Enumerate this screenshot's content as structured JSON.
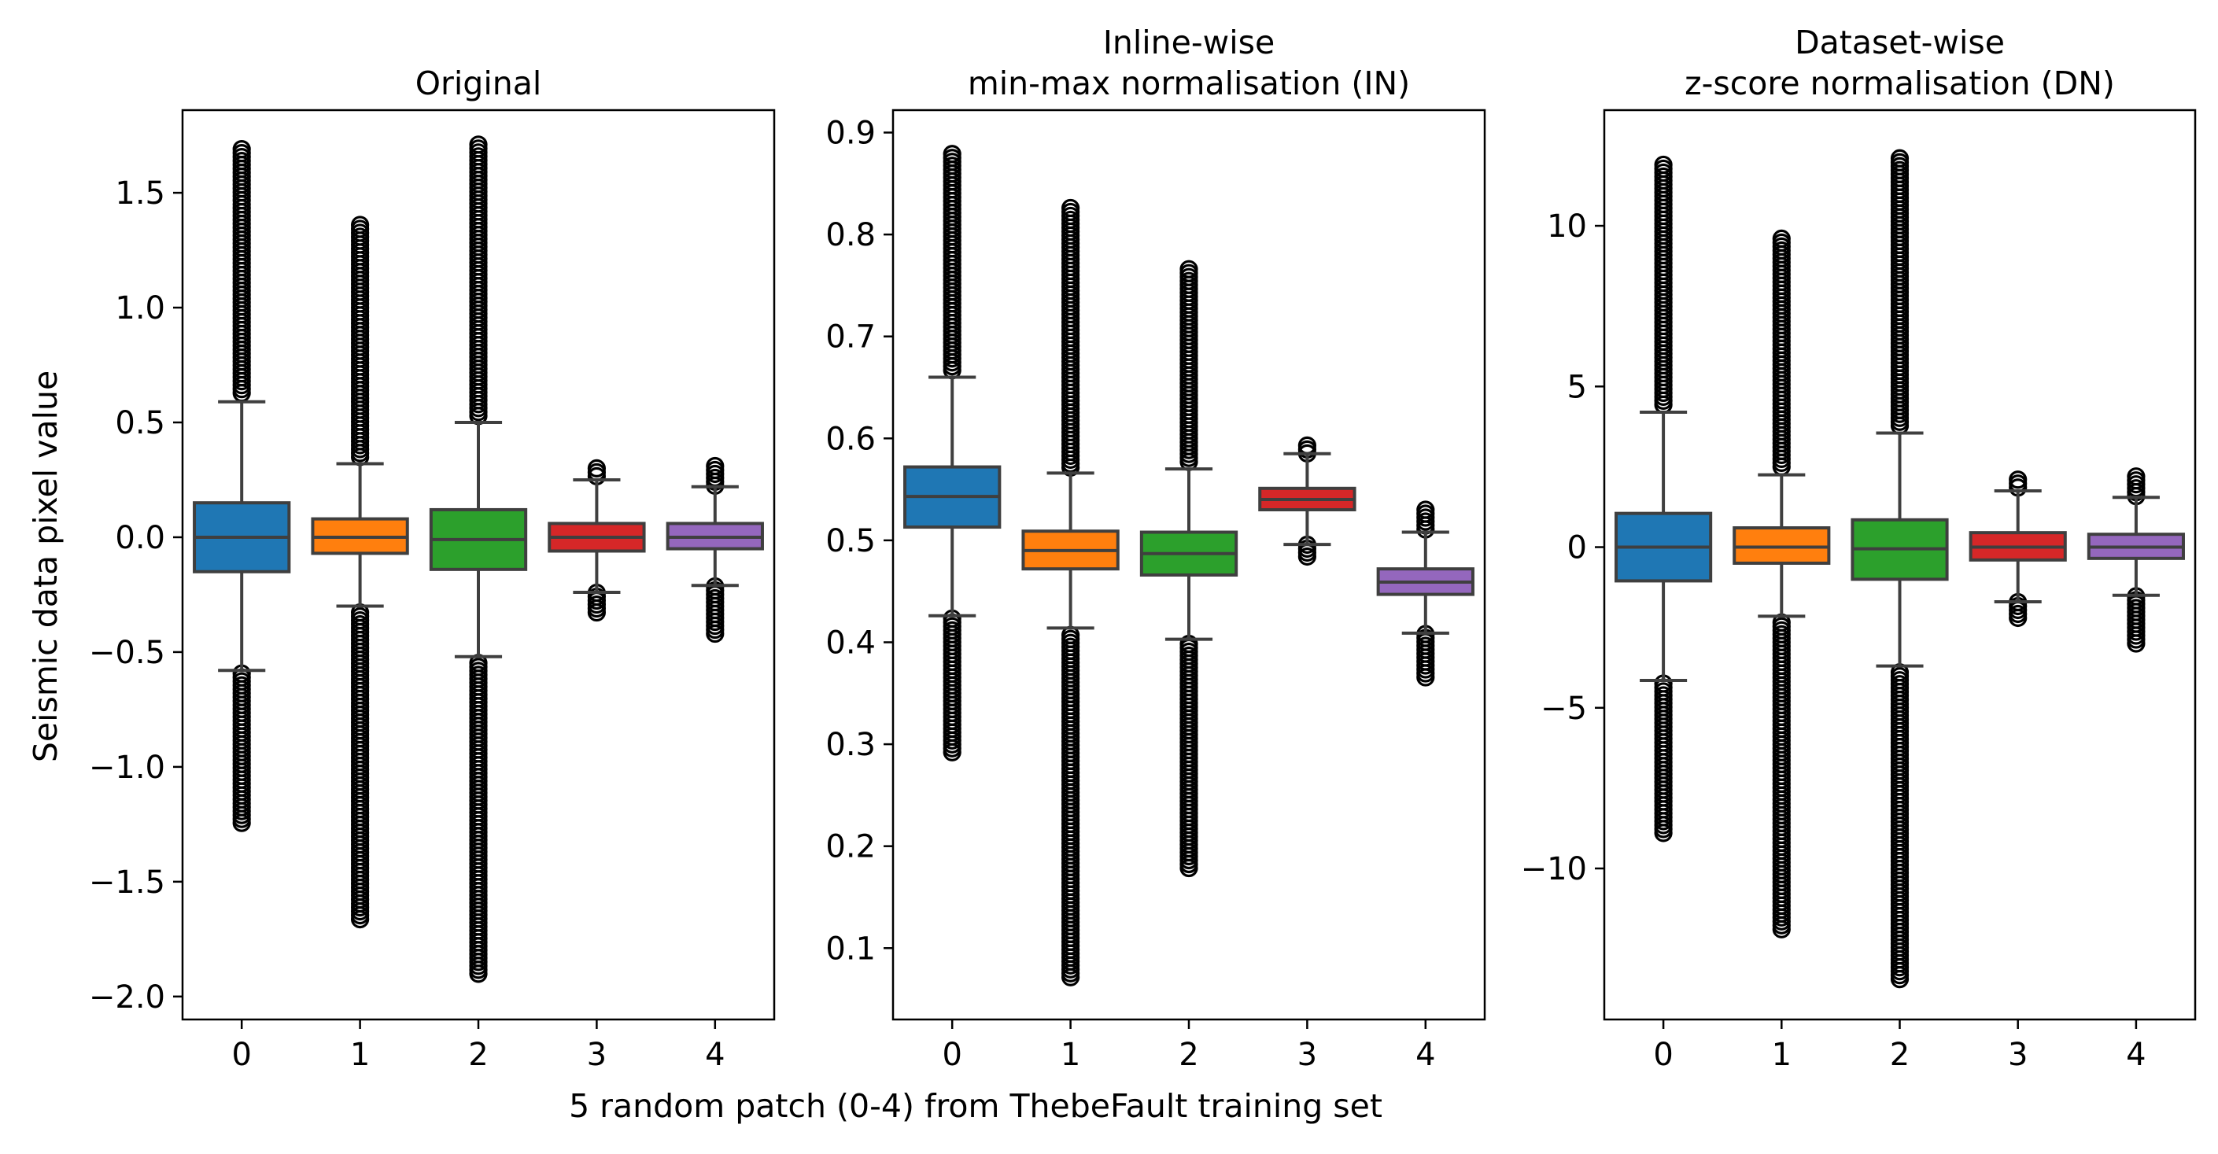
{
  "figure": {
    "xlabel": "5 random patch (0-4) from ThebeFault training set",
    "ylabel": "Seismic data pixel value",
    "colors": [
      "#1f77b4",
      "#ff7f0e",
      "#2ca02c",
      "#d62728",
      "#9467bd"
    ],
    "box_edge_color": "#3f3f3f"
  },
  "chart_data": [
    {
      "type": "box",
      "title": "Original",
      "categories": [
        "0",
        "1",
        "2",
        "3",
        "4"
      ],
      "ylim": [
        -2.1,
        1.86
      ],
      "yticks": [
        -2.0,
        -1.5,
        -1.0,
        -0.5,
        0.0,
        0.5,
        1.0,
        1.5
      ],
      "ytick_labels": [
        "−2.0",
        "−1.5",
        "−1.0",
        "−0.5",
        "0.0",
        "0.5",
        "1.0",
        "1.5"
      ],
      "boxes": [
        {
          "q1": -0.15,
          "median": 0.0,
          "q3": 0.15,
          "whisker_low": -0.58,
          "whisker_high": 0.59,
          "flier_min": -1.25,
          "flier_max": 1.69
        },
        {
          "q1": -0.07,
          "median": 0.0,
          "q3": 0.08,
          "whisker_low": -0.3,
          "whisker_high": 0.32,
          "flier_min": -1.68,
          "flier_max": 1.36
        },
        {
          "q1": -0.14,
          "median": -0.01,
          "q3": 0.12,
          "whisker_low": -0.52,
          "whisker_high": 0.5,
          "flier_min": -1.91,
          "flier_max": 1.71
        },
        {
          "q1": -0.06,
          "median": 0.0,
          "q3": 0.06,
          "whisker_low": -0.24,
          "whisker_high": 0.25,
          "flier_min": -0.33,
          "flier_max": 0.3
        },
        {
          "q1": -0.05,
          "median": 0.0,
          "q3": 0.06,
          "whisker_low": -0.21,
          "whisker_high": 0.22,
          "flier_min": -0.42,
          "flier_max": 0.31
        }
      ]
    },
    {
      "type": "box",
      "title": "Inline-wise\nmin-max normalisation (IN)",
      "categories": [
        "0",
        "1",
        "2",
        "3",
        "4"
      ],
      "ylim": [
        0.03,
        0.922
      ],
      "yticks": [
        0.1,
        0.2,
        0.3,
        0.4,
        0.5,
        0.6,
        0.7,
        0.8,
        0.9
      ],
      "ytick_labels": [
        "0.1",
        "0.2",
        "0.3",
        "0.4",
        "0.5",
        "0.6",
        "0.7",
        "0.8",
        "0.9"
      ],
      "boxes": [
        {
          "q1": 0.513,
          "median": 0.543,
          "q3": 0.572,
          "whisker_low": 0.426,
          "whisker_high": 0.66,
          "flier_min": 0.291,
          "flier_max": 0.879
        },
        {
          "q1": 0.472,
          "median": 0.49,
          "q3": 0.509,
          "whisker_low": 0.414,
          "whisker_high": 0.566,
          "flier_min": 0.07,
          "flier_max": 0.826
        },
        {
          "q1": 0.466,
          "median": 0.487,
          "q3": 0.508,
          "whisker_low": 0.403,
          "whisker_high": 0.57,
          "flier_min": 0.176,
          "flier_max": 0.766
        },
        {
          "q1": 0.53,
          "median": 0.54,
          "q3": 0.551,
          "whisker_low": 0.496,
          "whisker_high": 0.585,
          "flier_min": 0.481,
          "flier_max": 0.593
        },
        {
          "q1": 0.447,
          "median": 0.459,
          "q3": 0.472,
          "whisker_low": 0.409,
          "whisker_high": 0.508,
          "flier_min": 0.363,
          "flier_max": 0.53
        }
      ]
    },
    {
      "type": "box",
      "title": "Dataset-wise\nz-score normalisation (DN)",
      "categories": [
        "0",
        "1",
        "2",
        "3",
        "4"
      ],
      "ylim": [
        -14.7,
        13.6
      ],
      "yticks": [
        -10,
        -5,
        0,
        5,
        10
      ],
      "ytick_labels": [
        "−10",
        "−5",
        "0",
        "5",
        "10"
      ],
      "boxes": [
        {
          "q1": -1.05,
          "median": 0.0,
          "q3": 1.05,
          "whisker_low": -4.15,
          "whisker_high": 4.2,
          "flier_min": -8.9,
          "flier_max": 11.9
        },
        {
          "q1": -0.5,
          "median": 0.0,
          "q3": 0.6,
          "whisker_low": -2.15,
          "whisker_high": 2.25,
          "flier_min": -11.9,
          "flier_max": 9.6
        },
        {
          "q1": -1.0,
          "median": -0.05,
          "q3": 0.85,
          "whisker_low": -3.7,
          "whisker_high": 3.55,
          "flier_min": -13.5,
          "flier_max": 12.1
        },
        {
          "q1": -0.4,
          "median": 0.0,
          "q3": 0.45,
          "whisker_low": -1.7,
          "whisker_high": 1.75,
          "flier_min": -2.3,
          "flier_max": 2.1
        },
        {
          "q1": -0.35,
          "median": 0.0,
          "q3": 0.4,
          "whisker_low": -1.5,
          "whisker_high": 1.55,
          "flier_min": -3.0,
          "flier_max": 2.2
        }
      ]
    }
  ]
}
